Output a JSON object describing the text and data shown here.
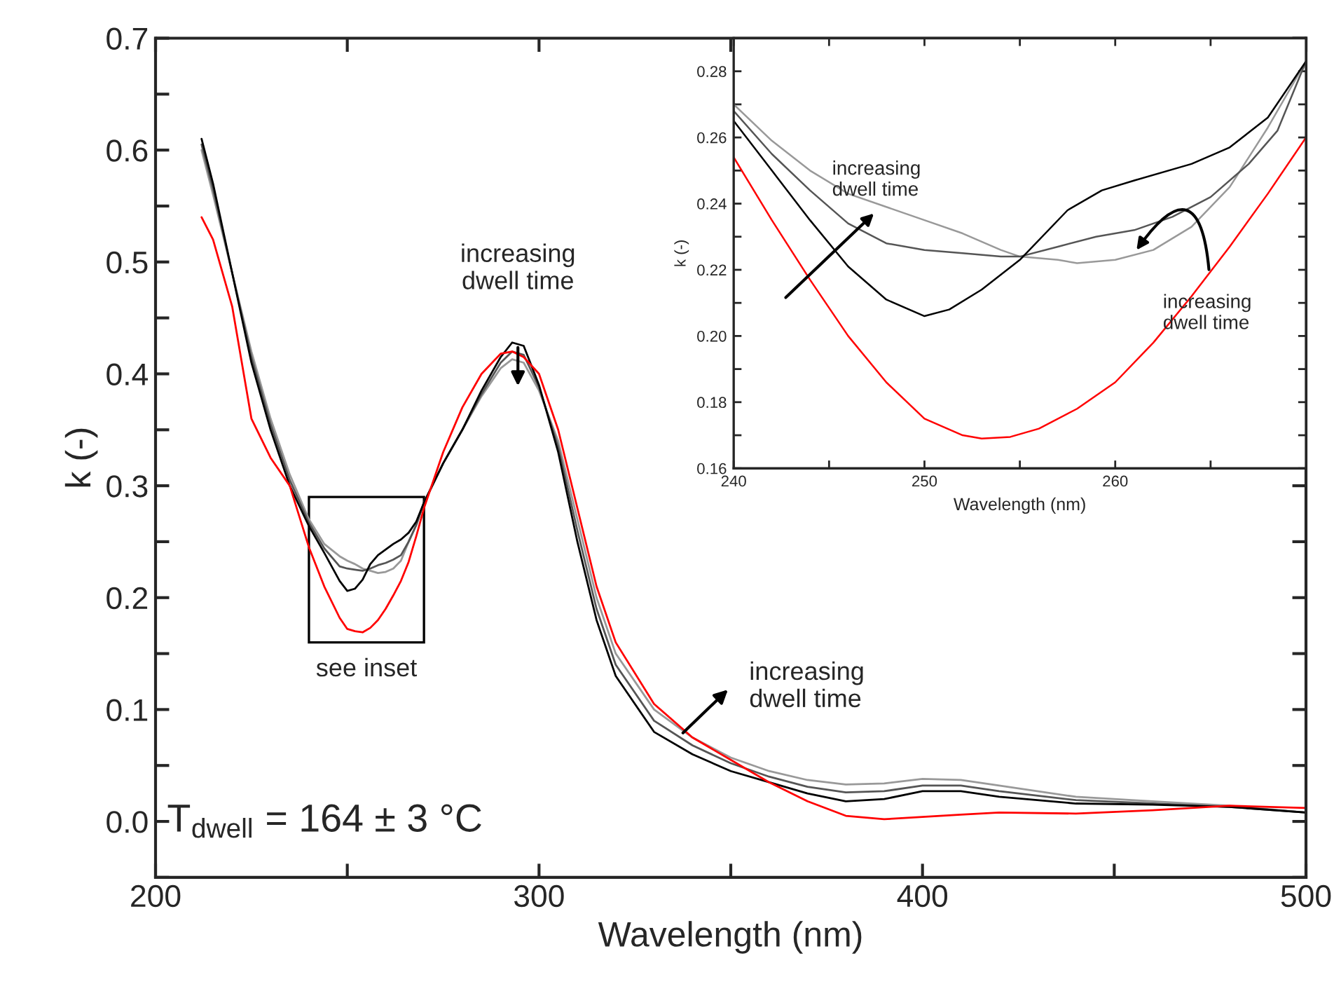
{
  "chart_data": [
    {
      "type": "line",
      "xlabel": "Wavelength (nm)",
      "ylabel": "k (-)",
      "xlim": [
        200,
        500
      ],
      "ylim": [
        -0.05,
        0.7
      ],
      "xticks": [
        200,
        {
          "value": 250,
          "label": null
        },
        300,
        {
          "value": 350,
          "label": null
        },
        400,
        {
          "value": 450,
          "label": null
        },
        500
      ],
      "yticks": [
        {
          "value": -0.05,
          "label": null
        },
        {
          "value": 0,
          "label": "0.0"
        },
        {
          "value": 0.05,
          "label": null
        },
        {
          "value": 0.1,
          "label": "0.1"
        },
        {
          "value": 0.15,
          "label": null
        },
        {
          "value": 0.2,
          "label": "0.2"
        },
        {
          "value": 0.25,
          "label": null
        },
        {
          "value": 0.3,
          "label": "0.3"
        },
        {
          "value": 0.35,
          "label": null
        },
        {
          "value": 0.4,
          "label": "0.4"
        },
        {
          "value": 0.45,
          "label": null
        },
        {
          "value": 0.5,
          "label": "0.5"
        },
        {
          "value": 0.55,
          "label": null
        },
        {
          "value": 0.6,
          "label": "0.6"
        },
        {
          "value": 0.65,
          "label": null
        },
        {
          "value": 0.7,
          "label": "0.7"
        }
      ],
      "grid": false,
      "legend": false,
      "marker": "none",
      "line_style": "solid",
      "x": [
        212,
        215,
        220,
        225,
        230,
        235,
        240,
        244,
        248,
        250,
        252,
        254,
        256,
        258,
        260,
        262,
        264,
        266,
        268,
        270,
        275,
        280,
        285,
        290,
        293,
        296,
        300,
        305,
        310,
        315,
        320,
        330,
        340,
        350,
        360,
        370,
        380,
        390,
        400,
        410,
        420,
        440,
        460,
        480,
        500
      ],
      "series": [
        {
          "color": "#999999",
          "values": [
            0.6,
            0.56,
            0.49,
            0.42,
            0.36,
            0.31,
            0.27,
            0.248,
            0.237,
            0.233,
            0.23,
            0.226,
            0.224,
            0.222,
            0.223,
            0.226,
            0.233,
            0.25,
            0.265,
            0.285,
            0.32,
            0.35,
            0.38,
            0.405,
            0.413,
            0.41,
            0.385,
            0.34,
            0.27,
            0.2,
            0.15,
            0.1,
            0.075,
            0.057,
            0.045,
            0.037,
            0.033,
            0.034,
            0.038,
            0.037,
            0.032,
            0.022,
            0.018,
            0.014,
            0.008
          ]
        },
        {
          "color": "#555555",
          "values": [
            0.605,
            0.565,
            0.49,
            0.415,
            0.355,
            0.305,
            0.267,
            0.244,
            0.228,
            0.226,
            0.225,
            0.224,
            0.226,
            0.229,
            0.231,
            0.234,
            0.238,
            0.25,
            0.265,
            0.285,
            0.32,
            0.35,
            0.382,
            0.41,
            0.42,
            0.417,
            0.388,
            0.335,
            0.26,
            0.19,
            0.14,
            0.09,
            0.068,
            0.052,
            0.04,
            0.031,
            0.026,
            0.027,
            0.032,
            0.032,
            0.027,
            0.019,
            0.016,
            0.013,
            0.008
          ]
        },
        {
          "color": "#000000",
          "values": [
            0.61,
            0.57,
            0.49,
            0.41,
            0.35,
            0.3,
            0.264,
            0.24,
            0.215,
            0.206,
            0.208,
            0.216,
            0.23,
            0.238,
            0.243,
            0.248,
            0.252,
            0.258,
            0.268,
            0.285,
            0.32,
            0.35,
            0.385,
            0.415,
            0.428,
            0.425,
            0.39,
            0.33,
            0.25,
            0.18,
            0.13,
            0.08,
            0.06,
            0.045,
            0.035,
            0.025,
            0.018,
            0.02,
            0.027,
            0.027,
            0.022,
            0.016,
            0.015,
            0.013,
            0.008
          ]
        },
        {
          "color": "#ff0000",
          "values": [
            0.54,
            0.52,
            0.46,
            0.36,
            0.325,
            0.3,
            0.245,
            0.21,
            0.182,
            0.172,
            0.17,
            0.169,
            0.173,
            0.18,
            0.19,
            0.202,
            0.215,
            0.232,
            0.255,
            0.28,
            0.33,
            0.37,
            0.4,
            0.418,
            0.42,
            0.415,
            0.4,
            0.35,
            0.28,
            0.21,
            0.16,
            0.105,
            0.075,
            0.055,
            0.035,
            0.018,
            0.005,
            0.002,
            0.004,
            0.006,
            0.008,
            0.007,
            0.01,
            0.014,
            0.012
          ]
        }
      ],
      "annotations": [
        "increasing\ndwell time",
        "increasing\ndwell time",
        "see inset",
        "T$_{dwell}$ = 164 ± 3 °C"
      ]
    },
    {
      "type": "line",
      "xlabel": "Wavelength (nm)",
      "ylabel": "k (-)",
      "xlim": [
        240,
        270
      ],
      "ylim": [
        0.16,
        0.29
      ],
      "xticks": [
        240,
        {
          "value": 245,
          "label": null
        },
        250,
        {
          "value": 255,
          "label": null
        },
        260,
        {
          "value": 265,
          "label": null
        }
      ],
      "yticks": [
        {
          "value": 0.16,
          "label": "0.16"
        },
        {
          "value": 0.17,
          "label": null
        },
        {
          "value": 0.18,
          "label": "0.18"
        },
        {
          "value": 0.19,
          "label": null
        },
        {
          "value": 0.2,
          "label": "0.20"
        },
        {
          "value": 0.21,
          "label": null
        },
        {
          "value": 0.22,
          "label": "0.22"
        },
        {
          "value": 0.23,
          "label": null
        },
        {
          "value": 0.24,
          "label": "0.24"
        },
        {
          "value": 0.25,
          "label": null
        },
        {
          "value": 0.26,
          "label": "0.26"
        },
        {
          "value": 0.27,
          "label": null
        },
        {
          "value": 0.28,
          "label": "0.28"
        }
      ],
      "grid": false,
      "legend": false,
      "marker": "none",
      "line_style": "solid",
      "series": [
        {
          "color": "#999999",
          "x": [
            240,
            242,
            244,
            246,
            248,
            250,
            252,
            254,
            255,
            257,
            258,
            260,
            262,
            264,
            266,
            268,
            270
          ],
          "values": [
            0.27,
            0.259,
            0.25,
            0.243,
            0.239,
            0.235,
            0.231,
            0.226,
            0.224,
            0.223,
            0.222,
            0.223,
            0.226,
            0.233,
            0.245,
            0.263,
            0.283
          ]
        },
        {
          "color": "#555555",
          "x": [
            240,
            242,
            244,
            246,
            248,
            250,
            252,
            254,
            255,
            257,
            259,
            261,
            263,
            265,
            267,
            268.5,
            270
          ],
          "values": [
            0.268,
            0.255,
            0.244,
            0.234,
            0.228,
            0.226,
            0.225,
            0.224,
            0.224,
            0.227,
            0.23,
            0.232,
            0.236,
            0.242,
            0.252,
            0.262,
            0.283
          ]
        },
        {
          "color": "#000000",
          "x": [
            240,
            242,
            244,
            246,
            248,
            250,
            251.3,
            253,
            255,
            257.5,
            259.3,
            261,
            264,
            266,
            268,
            270
          ],
          "values": [
            0.265,
            0.25,
            0.235,
            0.221,
            0.211,
            0.206,
            0.208,
            0.214,
            0.223,
            0.238,
            0.244,
            0.247,
            0.252,
            0.257,
            0.266,
            0.283
          ]
        },
        {
          "color": "#ff0000",
          "x": [
            240,
            242,
            244,
            246,
            248,
            250,
            252,
            253,
            254.5,
            256,
            258,
            260,
            262,
            264,
            266,
            268,
            270
          ],
          "values": [
            0.254,
            0.235,
            0.217,
            0.2,
            0.186,
            0.175,
            0.17,
            0.169,
            0.1695,
            0.172,
            0.178,
            0.186,
            0.198,
            0.212,
            0.227,
            0.243,
            0.26
          ]
        }
      ],
      "annotations": [
        "increasing\ndwell time",
        {
          "text": "increasing\ndwell time",
          "x": 261,
          "y": 0.225
        }
      ]
    }
  ]
}
